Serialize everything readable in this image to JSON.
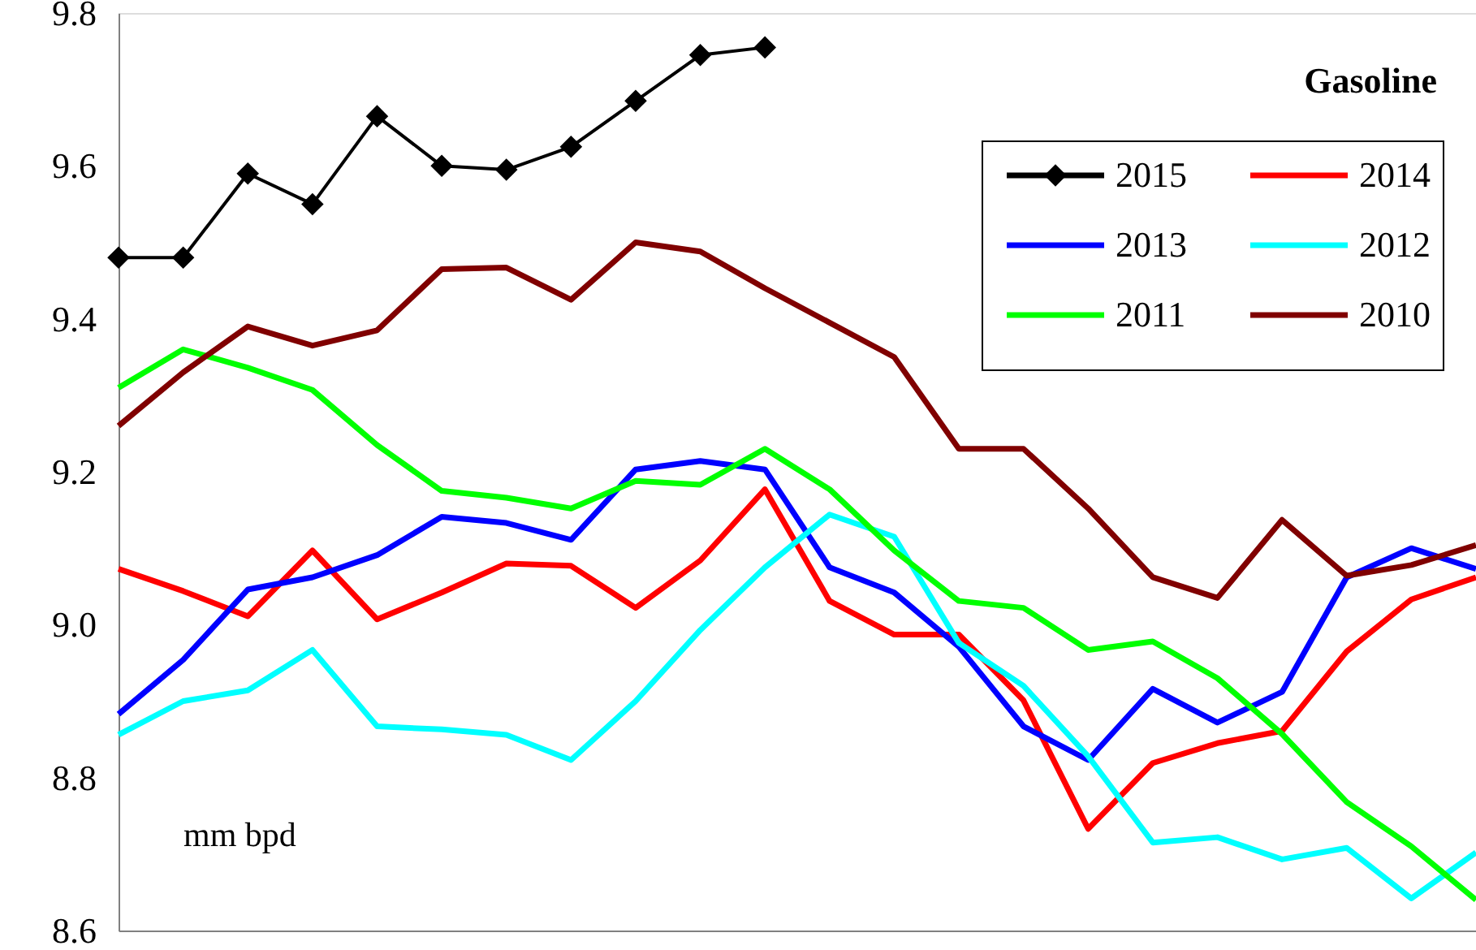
{
  "chart_data": {
    "type": "line",
    "title": "Gasoline",
    "categories": [
      null,
      null,
      null,
      null,
      null,
      null,
      null,
      null,
      null,
      null,
      null,
      null,
      null,
      null,
      null,
      null,
      null,
      null,
      null,
      null,
      null,
      null
    ],
    "series": [
      {
        "name": "2015",
        "color": "#000000",
        "marker": "diamond",
        "values": [
          9.48,
          9.48,
          9.59,
          9.55,
          9.665,
          9.6,
          9.595,
          9.625,
          9.685,
          9.745,
          9.755,
          null,
          null,
          null,
          null,
          null,
          null,
          null,
          null,
          null,
          null,
          null
        ]
      },
      {
        "name": "2014",
        "color": "#ff0000",
        "values": [
          9.073,
          9.044,
          9.011,
          9.097,
          9.007,
          9.042,
          9.08,
          9.077,
          9.022,
          9.084,
          9.177,
          9.031,
          8.987,
          8.987,
          8.901,
          8.733,
          8.819,
          8.845,
          8.861,
          8.965,
          9.033,
          9.062
        ]
      },
      {
        "name": "2013",
        "color": "#0000ff",
        "values": [
          8.883,
          8.954,
          9.046,
          9.062,
          9.091,
          9.141,
          9.133,
          9.111,
          9.203,
          9.214,
          9.203,
          9.075,
          9.042,
          8.971,
          8.867,
          8.823,
          8.916,
          8.872,
          8.912,
          9.062,
          9.1,
          9.073
        ]
      },
      {
        "name": "2012",
        "color": "#00ffff",
        "values": [
          8.856,
          8.9,
          8.914,
          8.967,
          8.867,
          8.863,
          8.856,
          8.823,
          8.9,
          8.993,
          9.075,
          9.144,
          9.115,
          8.976,
          8.92,
          8.828,
          8.715,
          8.722,
          8.693,
          8.708,
          8.642,
          8.702
        ]
      },
      {
        "name": "2011",
        "color": "#00ff00",
        "values": [
          9.31,
          9.36,
          9.336,
          9.307,
          9.235,
          9.175,
          9.166,
          9.152,
          9.188,
          9.183,
          9.23,
          9.177,
          9.097,
          9.031,
          9.022,
          8.967,
          8.978,
          8.93,
          8.857,
          8.768,
          8.71,
          8.64
        ]
      },
      {
        "name": "2010",
        "color": "#800000",
        "values": [
          9.26,
          9.33,
          9.39,
          9.365,
          9.385,
          9.465,
          9.467,
          9.425,
          9.5,
          9.488,
          9.44,
          9.395,
          9.35,
          9.23,
          9.23,
          9.152,
          9.062,
          9.035,
          9.137,
          9.064,
          9.078,
          9.104
        ]
      }
    ],
    "ylim": [
      8.6,
      9.8
    ],
    "yticks": [
      8.6,
      8.8,
      {
        "value": 9.0,
        "label": "9.0"
      },
      9.2,
      9.4,
      9.6,
      9.8
    ],
    "annotations": [
      "mm bpd"
    ],
    "legend": "top right",
    "grid": false,
    "line_style": "solid"
  }
}
